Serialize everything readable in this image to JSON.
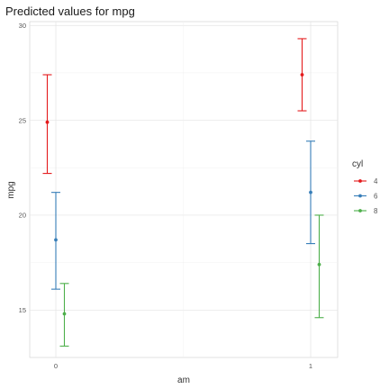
{
  "chart_data": {
    "type": "scatter",
    "title": "Predicted values for mpg",
    "xlabel": "am",
    "ylabel": "mpg",
    "categories": [
      "0",
      "1"
    ],
    "ylim": [
      12.5,
      30.2
    ],
    "yticks": [
      15,
      20,
      25,
      30
    ],
    "grid": true,
    "legend": {
      "title": "cyl",
      "placement": "right"
    },
    "series": [
      {
        "name": "4",
        "color": "#e41a1c",
        "points": [
          {
            "x": "0",
            "y": 24.9,
            "lower": 22.2,
            "upper": 27.4
          },
          {
            "x": "1",
            "y": 27.4,
            "lower": 25.5,
            "upper": 29.3
          }
        ]
      },
      {
        "name": "6",
        "color": "#377eb8",
        "points": [
          {
            "x": "0",
            "y": 18.7,
            "lower": 16.1,
            "upper": 21.2
          },
          {
            "x": "1",
            "y": 21.2,
            "lower": 18.5,
            "upper": 23.9
          }
        ]
      },
      {
        "name": "8",
        "color": "#4daf4a",
        "points": [
          {
            "x": "0",
            "y": 14.8,
            "lower": 13.1,
            "upper": 16.4
          },
          {
            "x": "1",
            "y": 17.4,
            "lower": 14.6,
            "upper": 20.0
          }
        ]
      }
    ]
  }
}
